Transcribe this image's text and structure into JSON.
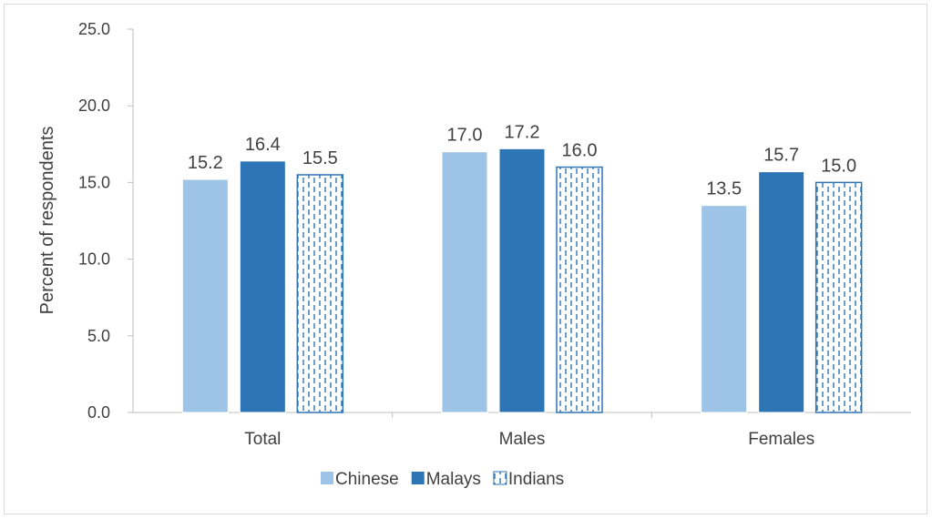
{
  "chart_data": {
    "type": "bar",
    "categories": [
      "Total",
      "Males",
      "Females"
    ],
    "series": [
      {
        "name": "Chinese",
        "values": [
          15.2,
          17.0,
          13.5
        ],
        "color": "#9dc3e6",
        "pattern": "solid"
      },
      {
        "name": "Malays",
        "values": [
          16.4,
          17.2,
          15.7
        ],
        "color": "#2e75b6",
        "pattern": "solid"
      },
      {
        "name": "Indians",
        "values": [
          15.5,
          16.0,
          15.0
        ],
        "color": "#2e75b6",
        "pattern": "dashed-vertical"
      }
    ],
    "ylabel": "Percent of respondents",
    "ylim": [
      0,
      25
    ],
    "yticks": [
      0,
      5,
      10,
      15,
      20,
      25
    ],
    "ytick_labels": [
      "0.0",
      "5.0",
      "10.0",
      "15.0",
      "20.0",
      "25.0"
    ],
    "grid": false,
    "legend_position": "bottom"
  }
}
